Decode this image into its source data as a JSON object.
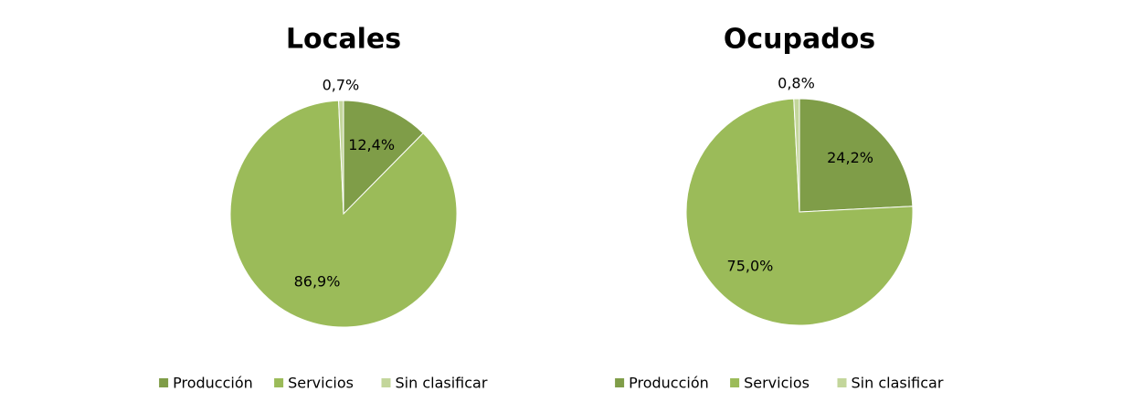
{
  "chart_data": [
    {
      "type": "pie",
      "title": "Locales",
      "categories": [
        "Producción",
        "Servicios",
        "Sin clasificar"
      ],
      "values": [
        12.4,
        86.9,
        0.7
      ],
      "value_labels": [
        "12,4%",
        "86,9%",
        "0,7%"
      ],
      "colors": [
        "#7f9d48",
        "#9bbb59",
        "#c3d69b"
      ],
      "legend": "bottom"
    },
    {
      "type": "pie",
      "title": "Ocupados",
      "categories": [
        "Producción",
        "Servicios",
        "Sin clasificar"
      ],
      "values": [
        24.2,
        75.0,
        0.8
      ],
      "value_labels": [
        "24,2%",
        "75,0%",
        "0,8%"
      ],
      "colors": [
        "#7f9d48",
        "#9bbb59",
        "#c3d69b"
      ],
      "legend": "bottom"
    }
  ]
}
